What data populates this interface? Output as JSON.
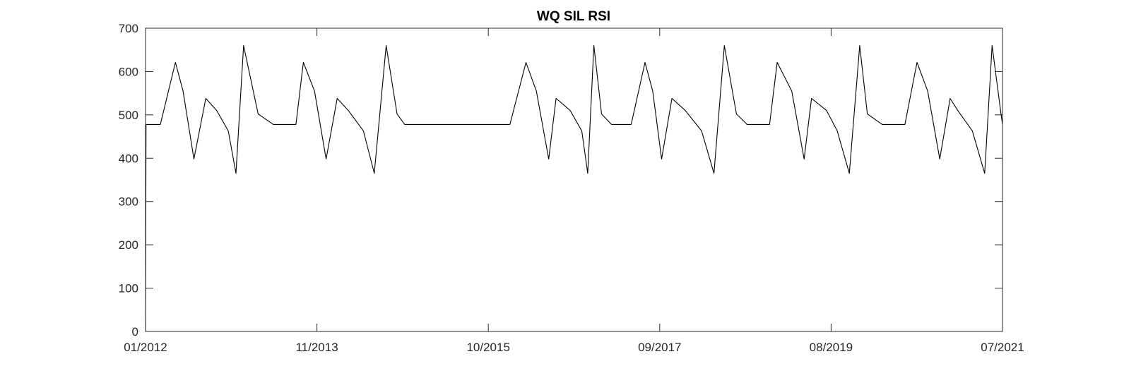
{
  "chart_data": {
    "type": "line",
    "title": "WQ SIL RSI",
    "xlabel": "",
    "ylabel": "",
    "x_tick_labels": [
      "01/2012",
      "11/2013",
      "10/2015",
      "09/2017",
      "08/2019",
      "07/2021"
    ],
    "y_tick_labels": [
      "0",
      "100",
      "200",
      "300",
      "400",
      "500",
      "600",
      "700"
    ],
    "xlim": [
      "2012-01-01",
      "2021-07-01"
    ],
    "ylim": [
      0,
      700
    ],
    "grid": false,
    "colors": {
      "line": "#000000",
      "axes": "#262626"
    },
    "series": [
      {
        "x": [
          "2012-01-01",
          "2012-01-03",
          "2012-01-20",
          "2012-03-01",
          "2012-05-01",
          "2012-06-01",
          "2012-07-15",
          "2012-09-01",
          "2012-10-15",
          "2012-12-01",
          "2013-01-01",
          "2013-02-01",
          "2013-04-01",
          "2013-06-01",
          "2013-08-01",
          "2013-09-01",
          "2013-10-01",
          "2013-11-15",
          "2014-01-01",
          "2014-02-15",
          "2014-04-01",
          "2014-06-01",
          "2014-07-15",
          "2014-09-01",
          "2014-10-15",
          "2014-11-15",
          "2015-01-15",
          "2016-01-15",
          "2016-03-20",
          "2016-05-01",
          "2016-06-20",
          "2016-07-20",
          "2016-09-15",
          "2016-11-01",
          "2016-11-25",
          "2016-12-20",
          "2017-01-20",
          "2017-03-01",
          "2017-04-20",
          "2017-05-20",
          "2017-07-15",
          "2017-08-15",
          "2017-09-20",
          "2017-11-01",
          "2017-12-25",
          "2018-03-01",
          "2018-04-20",
          "2018-06-01",
          "2018-07-20",
          "2018-09-01",
          "2018-10-20",
          "2018-12-01",
          "2019-01-01",
          "2019-03-01",
          "2019-04-20",
          "2019-05-20",
          "2019-07-20",
          "2019-09-01",
          "2019-10-20",
          "2019-12-01",
          "2020-01-01",
          "2020-03-01",
          "2020-04-20",
          "2020-06-01",
          "2020-07-20",
          "2020-09-01",
          "2020-10-20",
          "2020-12-01",
          "2021-01-01",
          "2021-03-01",
          "2021-04-20",
          "2021-05-20",
          "2021-06-25",
          "2021-07-01"
        ],
        "values": [
          0,
          478,
          478,
          478,
          621,
          555,
          398,
          538,
          510,
          463,
          365,
          660,
          502,
          478,
          478,
          478,
          621,
          555,
          398,
          538,
          510,
          463,
          365,
          660,
          502,
          478,
          478,
          478,
          621,
          555,
          398,
          538,
          510,
          463,
          365,
          660,
          502,
          478,
          478,
          478,
          621,
          555,
          398,
          538,
          510,
          463,
          365,
          660,
          502,
          478,
          478,
          478,
          621,
          555,
          398,
          538,
          510,
          463,
          365,
          660,
          502,
          478,
          478,
          478,
          621,
          555,
          398,
          538,
          510,
          463,
          365,
          660,
          502,
          478
        ]
      }
    ]
  }
}
